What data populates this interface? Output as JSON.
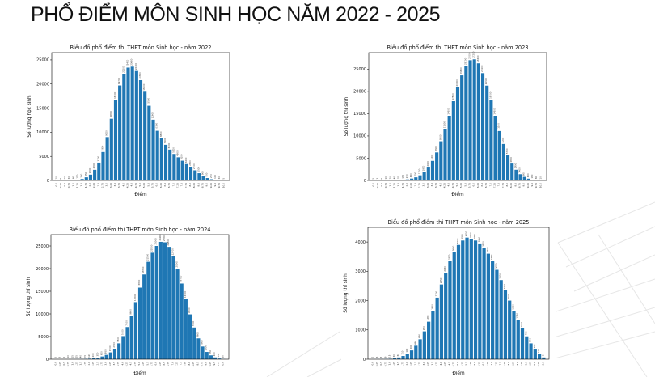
{
  "slide": {
    "title": "PHỔ ĐIỂM MÔN SINH HỌC NĂM 2022 - 2025"
  },
  "chart_data": [
    {
      "type": "bar",
      "title": "Biểu đồ phổ điểm thi THPT môn Sinh học - năm 2022",
      "xlabel": "Điểm",
      "ylabel": "Số lượng học sinh",
      "ylim": [
        0,
        26500
      ],
      "yticks": [
        0,
        5000,
        10000,
        15000,
        20000,
        25000
      ],
      "grid": false,
      "categories": [
        "0.0",
        "0.25",
        "0.5",
        "0.75",
        "1.0",
        "1.25",
        "1.5",
        "1.75",
        "2.0",
        "2.25",
        "2.5",
        "2.75",
        "3.0",
        "3.25",
        "3.5",
        "3.75",
        "4.0",
        "4.25",
        "4.5",
        "4.75",
        "5.0",
        "5.25",
        "5.5",
        "5.75",
        "6.0",
        "6.25",
        "6.5",
        "6.75",
        "7.0",
        "7.25",
        "7.5",
        "7.75",
        "8.0",
        "8.25",
        "8.5",
        "8.75",
        "9.0",
        "9.25",
        "9.5",
        "9.75",
        "10.0"
      ],
      "values": [
        10,
        5,
        10,
        30,
        60,
        150,
        300,
        650,
        1200,
        2200,
        3700,
        5900,
        9000,
        12800,
        16700,
        19700,
        22100,
        23400,
        23600,
        22700,
        20800,
        18400,
        15500,
        12600,
        10300,
        8800,
        7400,
        6400,
        5500,
        4800,
        4100,
        3400,
        2800,
        2100,
        1500,
        900,
        500,
        250,
        100,
        30,
        5
      ]
    },
    {
      "type": "bar",
      "title": "Biểu đồ phổ điểm thi THPT môn Sinh học - năm 2023",
      "xlabel": "Điểm",
      "ylabel": "Số lượng thí sinh",
      "ylim": [
        0,
        28700
      ],
      "yticks": [
        0,
        5000,
        10000,
        15000,
        20000,
        25000
      ],
      "grid": false,
      "categories": [
        "0.0",
        "0.25",
        "0.5",
        "0.75",
        "1.0",
        "1.25",
        "1.5",
        "1.75",
        "2.0",
        "2.25",
        "2.5",
        "2.75",
        "3.0",
        "3.25",
        "3.5",
        "3.75",
        "4.0",
        "4.25",
        "4.5",
        "4.75",
        "5.0",
        "5.25",
        "5.5",
        "5.75",
        "6.0",
        "6.25",
        "6.5",
        "6.75",
        "7.0",
        "7.25",
        "7.5",
        "7.75",
        "8.0",
        "8.25",
        "8.5",
        "8.75",
        "9.0",
        "9.25",
        "9.5",
        "9.75",
        "10.0"
      ],
      "values": [
        5,
        3,
        5,
        10,
        20,
        40,
        70,
        130,
        230,
        420,
        700,
        1150,
        1850,
        2900,
        4400,
        6300,
        8800,
        11500,
        14500,
        17800,
        20900,
        23600,
        25700,
        27000,
        27200,
        26300,
        24100,
        21300,
        18100,
        14500,
        11100,
        8200,
        5700,
        3800,
        2400,
        1400,
        800,
        400,
        180,
        60,
        10
      ]
    },
    {
      "type": "bar",
      "title": "Biểu đồ phổ điểm thi THPT môn Sinh học - năm 2024",
      "xlabel": "Điểm",
      "ylabel": "Số lượng thí sinh",
      "ylim": [
        0,
        27500
      ],
      "yticks": [
        0,
        5000,
        10000,
        15000,
        20000,
        25000
      ],
      "grid": false,
      "categories": [
        "0.0",
        "0.25",
        "0.5",
        "0.75",
        "1.0",
        "1.25",
        "1.5",
        "1.75",
        "2.0",
        "2.25",
        "2.5",
        "2.75",
        "3.0",
        "3.25",
        "3.5",
        "3.75",
        "4.0",
        "4.25",
        "4.5",
        "4.75",
        "5.0",
        "5.25",
        "5.5",
        "5.75",
        "6.0",
        "6.25",
        "6.5",
        "6.75",
        "7.0",
        "7.25",
        "7.5",
        "7.75",
        "8.0",
        "8.25",
        "8.5",
        "8.75",
        "9.0",
        "9.25",
        "9.5",
        "9.75",
        "10.0"
      ],
      "values": [
        5,
        3,
        5,
        10,
        15,
        25,
        40,
        70,
        120,
        200,
        350,
        600,
        950,
        1500,
        2300,
        3500,
        5100,
        7100,
        9600,
        12600,
        15800,
        18700,
        21500,
        23500,
        25000,
        25900,
        25800,
        24800,
        22700,
        20000,
        16700,
        13300,
        9900,
        7000,
        4600,
        2800,
        1600,
        850,
        400,
        150,
        30
      ]
    },
    {
      "type": "bar",
      "title": "Biểu đồ phổ điểm thi THPT môn Sinh học - năm 2025",
      "xlabel": "Điểm",
      "ylabel": "Số lượng thí sinh",
      "ylim": [
        0,
        4500
      ],
      "yticks": [
        0,
        1000,
        2000,
        3000,
        4000
      ],
      "grid": false,
      "categories": [
        "0.0",
        "0.25",
        "0.5",
        "0.75",
        "1.0",
        "1.25",
        "1.5",
        "1.75",
        "2.0",
        "2.25",
        "2.5",
        "2.75",
        "3.0",
        "3.25",
        "3.5",
        "3.75",
        "4.0",
        "4.25",
        "4.5",
        "4.75",
        "5.0",
        "5.25",
        "5.5",
        "5.75",
        "6.0",
        "6.25",
        "6.5",
        "6.75",
        "7.0",
        "7.25",
        "7.5",
        "7.75",
        "8.0",
        "8.25",
        "8.5",
        "8.75",
        "9.0",
        "9.25",
        "9.5",
        "9.75",
        "10.0"
      ],
      "values": [
        2,
        3,
        5,
        8,
        15,
        30,
        60,
        110,
        190,
        300,
        460,
        680,
        950,
        1280,
        1650,
        2100,
        2550,
        2950,
        3350,
        3650,
        3900,
        4050,
        4150,
        4100,
        4050,
        3950,
        3800,
        3600,
        3350,
        3050,
        2700,
        2350,
        2000,
        1650,
        1350,
        1050,
        780,
        540,
        330,
        170,
        60
      ]
    }
  ]
}
